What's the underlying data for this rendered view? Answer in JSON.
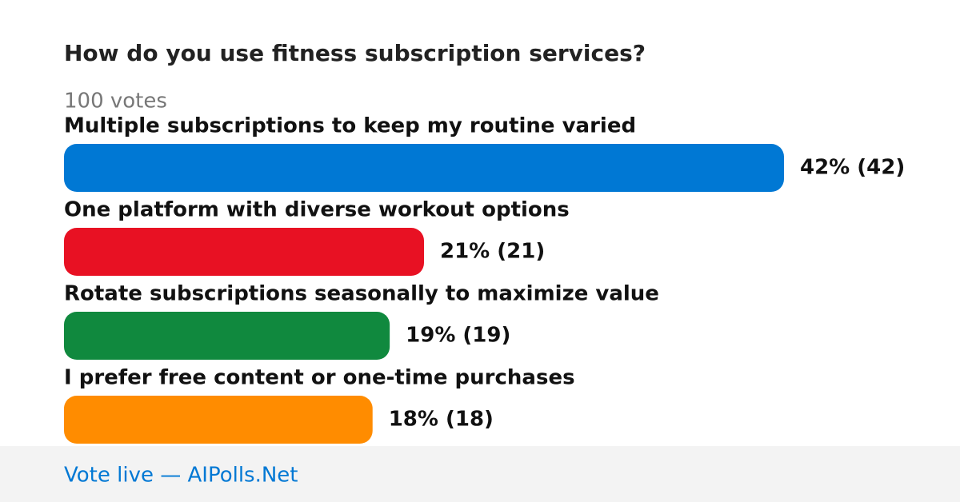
{
  "chart_data": {
    "type": "bar",
    "orientation": "horizontal",
    "title": "How do you use fitness subscription services?",
    "subtitle": "100 votes",
    "categories": [
      "Multiple subscriptions to keep my routine varied",
      "One platform with diverse workout options",
      "Rotate subscriptions seasonally to maximize value",
      "I prefer free content or one-time purchases"
    ],
    "values": [
      42,
      21,
      19,
      18
    ],
    "value_labels": [
      "42% (42)",
      "21% (21)",
      "19% (19)",
      "18% (18)"
    ],
    "colors": [
      "#0078d4",
      "#e81123",
      "#10893e",
      "#ff8c00"
    ],
    "footer": "Vote live — AIPolls.Net"
  }
}
